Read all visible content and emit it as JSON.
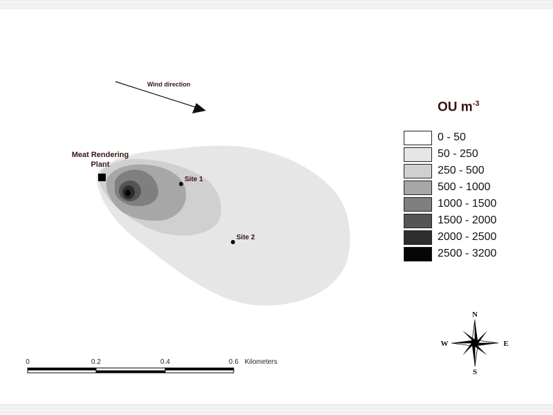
{
  "wind": {
    "label": "Wind direction"
  },
  "source": {
    "label_line1": "Meat Rendering",
    "label_line2": "Plant"
  },
  "sites": [
    {
      "label": "Site 1"
    },
    {
      "label": "Site 2"
    }
  ],
  "legend": {
    "title": "OU m",
    "title_exponent": "-3",
    "classes": [
      {
        "label": "0 - 50",
        "color": "#ffffff"
      },
      {
        "label": "50 - 250",
        "color": "#e6e6e6"
      },
      {
        "label": "250 - 500",
        "color": "#d0d0d0"
      },
      {
        "label": "500 - 1000",
        "color": "#a7a7a7"
      },
      {
        "label": "1000 - 1500",
        "color": "#7f7f7f"
      },
      {
        "label": "1500 - 2000",
        "color": "#555555"
      },
      {
        "label": "2000 - 2500",
        "color": "#2e2e2e"
      },
      {
        "label": "2500 - 3200",
        "color": "#060606"
      }
    ]
  },
  "scale_bar": {
    "ticks": [
      "0",
      "0.2",
      "0.4",
      "0.6"
    ],
    "units": "Kilometers"
  },
  "compass": {
    "north": "N",
    "south": "S",
    "east": "E",
    "west": "W"
  }
}
